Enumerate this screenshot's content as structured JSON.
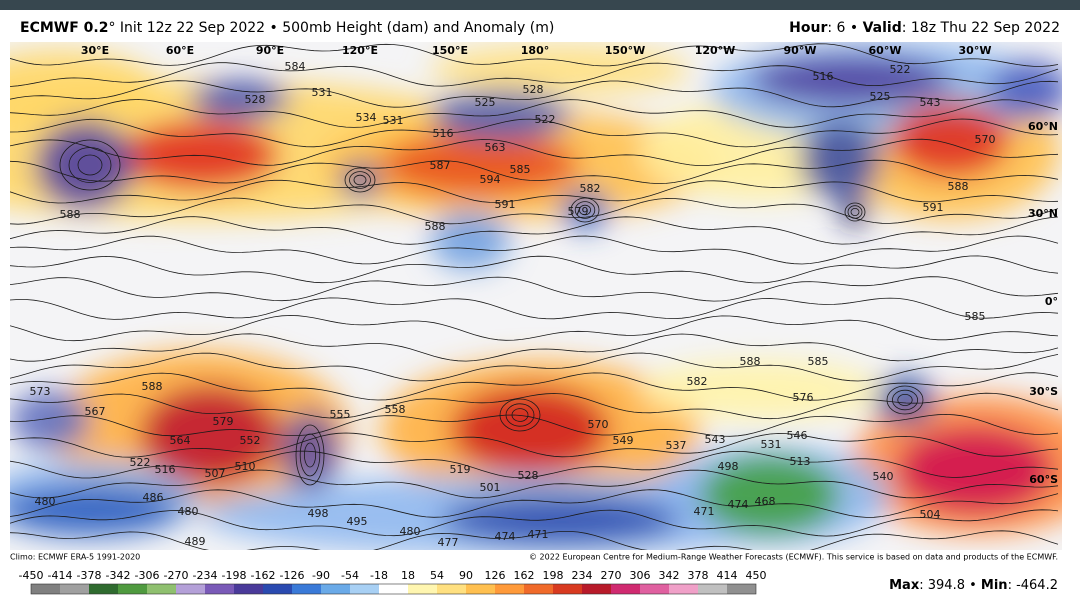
{
  "header": {
    "model": "ECMWF 0.2",
    "init": "° Init 12z 22 Sep 2022 • 500mb Height (dam) and Anomaly (m)",
    "hour_label": "Hour",
    "hour": ": 6 • ",
    "valid_label": "Valid",
    "valid": ": 18z Thu 22 Sep 2022"
  },
  "map": {
    "longitudes": [
      "30°E",
      "60°E",
      "90°E",
      "120°E",
      "150°E",
      "180°",
      "150°W",
      "120°W",
      "90°W",
      "60°W",
      "30°W"
    ],
    "latitudes": [
      "60°N",
      "30°N",
      "0°",
      "30°S",
      "60°S"
    ],
    "contour_labels": [
      "584",
      "531",
      "528",
      "534",
      "531",
      "525",
      "528",
      "522",
      "516",
      "563",
      "587",
      "594",
      "585",
      "582",
      "579",
      "591",
      "588",
      "588",
      "516",
      "522",
      "525",
      "543",
      "570",
      "588",
      "591",
      "585",
      "588",
      "585",
      "582",
      "576",
      "588",
      "579",
      "564",
      "552",
      "555",
      "558",
      "570",
      "549",
      "537",
      "543",
      "531",
      "546",
      "513",
      "498",
      "474",
      "468",
      "471",
      "540",
      "504",
      "501",
      "528",
      "519",
      "522",
      "516",
      "507",
      "510",
      "480",
      "486",
      "480",
      "498",
      "495",
      "480",
      "477",
      "474",
      "471",
      "489",
      "573",
      "567"
    ]
  },
  "footer": {
    "climo": "Climo: ECMWF ERA-5 1991-2020",
    "copyright": "© 2022 European Centre for Medium-Range Weather Forecasts (ECMWF). This service is based on data and products of the ECMWF.",
    "colorbar_ticks": [
      -450,
      -414,
      -378,
      -342,
      -306,
      -270,
      -234,
      -198,
      -162,
      -126,
      -90,
      -54,
      -18,
      18,
      54,
      90,
      126,
      162,
      198,
      234,
      270,
      306,
      342,
      378,
      414,
      450
    ],
    "max_label": "Max",
    "max": 394.8,
    "min_label": "Min",
    "min": -464.2
  }
}
